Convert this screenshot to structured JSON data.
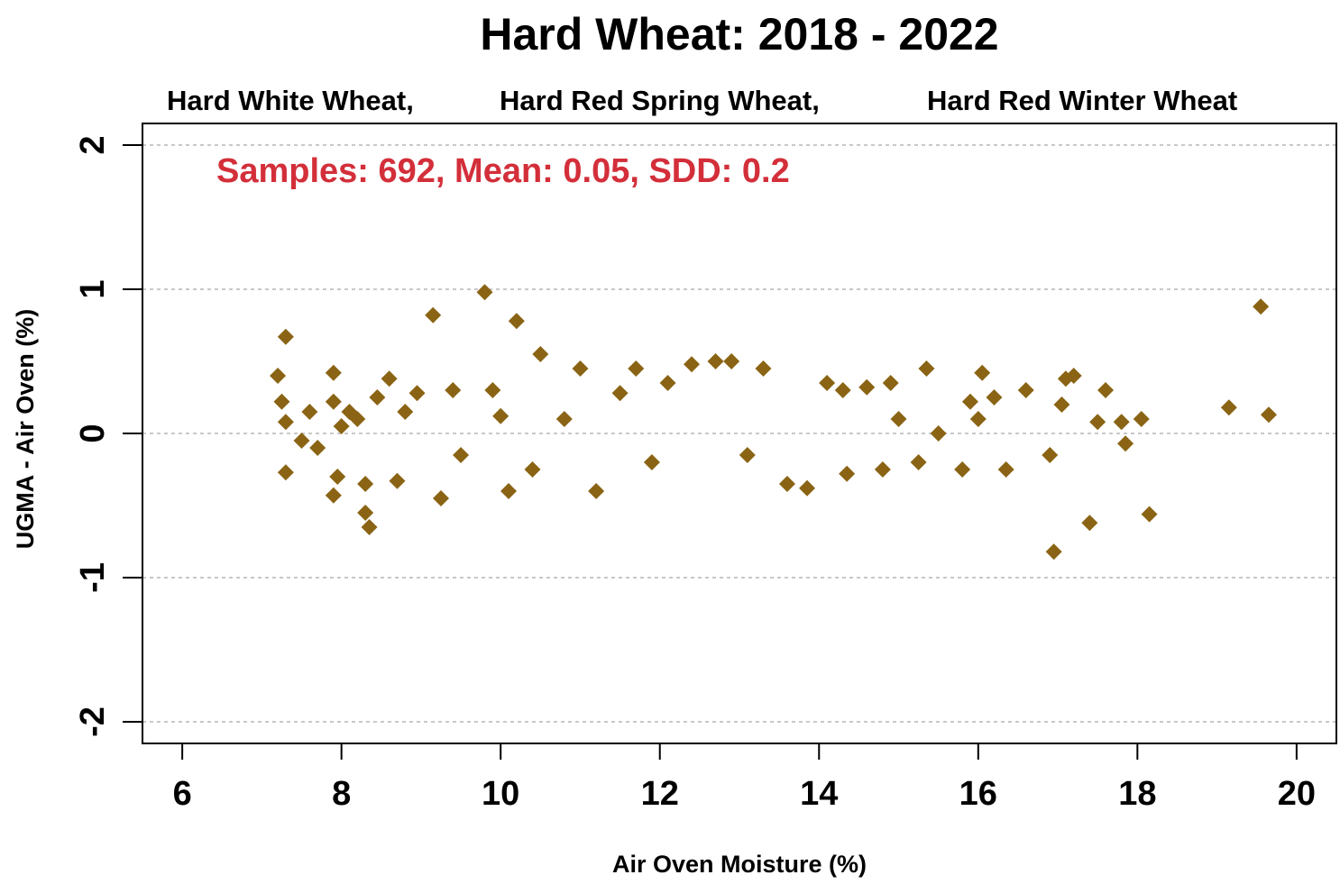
{
  "chart_data": {
    "type": "scatter",
    "title": "Hard Wheat: 2018 - 2022",
    "subtitle_parts": [
      "Hard White Wheat,",
      "Hard Red Spring Wheat,",
      "Hard Red Winter Wheat"
    ],
    "stats_label": "Samples: 692,  Mean: 0.05,  SDD: 0.2",
    "xlabel": "Air Oven Moisture (%)",
    "ylabel": "UGMA - Air Oven (%)",
    "xlim": [
      5.5,
      20.5
    ],
    "ylim": [
      -2.15,
      2.15
    ],
    "x_ticks": [
      "6",
      "8",
      "10",
      "12",
      "14",
      "16",
      "18",
      "20"
    ],
    "y_ticks": [
      "-2",
      "-1",
      "0",
      "1",
      "2"
    ],
    "grid": "horizontal dashed",
    "marker_color": "#8a6414",
    "marker": "diamond",
    "points": [
      [
        7.2,
        0.4
      ],
      [
        7.3,
        0.67
      ],
      [
        7.25,
        0.22
      ],
      [
        7.3,
        0.08
      ],
      [
        7.3,
        -0.27
      ],
      [
        7.5,
        -0.05
      ],
      [
        7.6,
        0.15
      ],
      [
        7.7,
        -0.1
      ],
      [
        7.9,
        0.42
      ],
      [
        7.9,
        0.22
      ],
      [
        8.0,
        0.05
      ],
      [
        7.95,
        -0.3
      ],
      [
        7.9,
        -0.43
      ],
      [
        8.1,
        0.15
      ],
      [
        8.2,
        0.1
      ],
      [
        8.3,
        -0.55
      ],
      [
        8.35,
        -0.65
      ],
      [
        8.3,
        -0.35
      ],
      [
        8.45,
        0.25
      ],
      [
        8.6,
        0.38
      ],
      [
        8.7,
        -0.33
      ],
      [
        8.8,
        0.15
      ],
      [
        8.95,
        0.28
      ],
      [
        9.15,
        0.82
      ],
      [
        9.25,
        -0.45
      ],
      [
        9.4,
        0.3
      ],
      [
        9.5,
        -0.15
      ],
      [
        9.8,
        0.98
      ],
      [
        9.9,
        0.3
      ],
      [
        10.0,
        0.12
      ],
      [
        10.1,
        -0.4
      ],
      [
        10.2,
        0.78
      ],
      [
        10.4,
        -0.25
      ],
      [
        10.5,
        0.55
      ],
      [
        10.8,
        0.1
      ],
      [
        11.0,
        0.45
      ],
      [
        11.2,
        -0.4
      ],
      [
        11.5,
        0.28
      ],
      [
        11.7,
        0.45
      ],
      [
        11.9,
        -0.2
      ],
      [
        12.1,
        0.35
      ],
      [
        12.4,
        0.48
      ],
      [
        12.7,
        0.5
      ],
      [
        12.9,
        0.5
      ],
      [
        13.1,
        -0.15
      ],
      [
        13.3,
        0.45
      ],
      [
        13.6,
        -0.35
      ],
      [
        13.85,
        -0.38
      ],
      [
        14.1,
        0.35
      ],
      [
        14.3,
        0.3
      ],
      [
        14.35,
        -0.28
      ],
      [
        14.6,
        0.32
      ],
      [
        14.8,
        -0.25
      ],
      [
        14.9,
        0.35
      ],
      [
        15.0,
        0.1
      ],
      [
        15.25,
        -0.2
      ],
      [
        15.35,
        0.45
      ],
      [
        15.5,
        0.0
      ],
      [
        15.8,
        -0.25
      ],
      [
        15.9,
        0.22
      ],
      [
        16.0,
        0.1
      ],
      [
        16.05,
        0.42
      ],
      [
        16.2,
        0.25
      ],
      [
        16.35,
        -0.25
      ],
      [
        16.6,
        0.3
      ],
      [
        16.9,
        -0.15
      ],
      [
        16.95,
        -0.82
      ],
      [
        17.05,
        0.2
      ],
      [
        17.1,
        0.38
      ],
      [
        17.2,
        0.4
      ],
      [
        17.4,
        -0.62
      ],
      [
        17.5,
        0.08
      ],
      [
        17.6,
        0.3
      ],
      [
        17.8,
        0.08
      ],
      [
        17.85,
        -0.07
      ],
      [
        18.05,
        0.1
      ],
      [
        18.15,
        -0.56
      ],
      [
        19.15,
        0.18
      ],
      [
        19.55,
        0.88
      ],
      [
        19.65,
        0.13
      ]
    ]
  }
}
